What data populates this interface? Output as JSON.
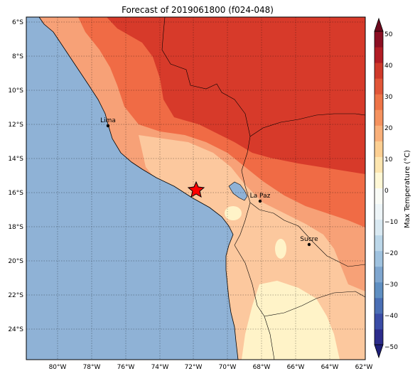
{
  "title": "Forecast of 2019061800 (f024-048)",
  "map": {
    "lat_ticks": [
      "6°S",
      "8°S",
      "10°S",
      "12°S",
      "14°S",
      "16°S",
      "18°S",
      "20°S",
      "22°S",
      "24°S"
    ],
    "lon_ticks": [
      "80°W",
      "78°W",
      "76°W",
      "74°W",
      "72°W",
      "70°W",
      "68°W",
      "66°W",
      "64°W",
      "62°W"
    ],
    "cities": [
      {
        "name": "Lima",
        "lon": -77.0,
        "lat": -12.05
      },
      {
        "name": "La Paz",
        "lon": -68.1,
        "lat": -16.5
      },
      {
        "name": "Sucre",
        "lon": -65.3,
        "lat": -19.0
      }
    ],
    "marker": {
      "symbol": "star",
      "lon": -71.9,
      "lat": -15.8,
      "color": "#ff0000"
    },
    "extent": {
      "lon_min": -81.8,
      "lon_max": -62.0,
      "lat_min": -25.8,
      "lat_max": -5.8
    },
    "gridlines": "dotted"
  },
  "colorbar": {
    "label": "Max Temperature (°C)",
    "ticks": [
      "50",
      "40",
      "30",
      "20",
      "10",
      "0",
      "−10",
      "−20",
      "−30",
      "−40",
      "−50"
    ],
    "levels": [
      -50,
      -45,
      -40,
      -35,
      -30,
      -25,
      -20,
      -15,
      -10,
      -5,
      0,
      5,
      10,
      15,
      20,
      25,
      30,
      35,
      40,
      45,
      50
    ],
    "colors": [
      "#2c2c8c",
      "#3a4ca6",
      "#4a6fb5",
      "#5f8fc2",
      "#7fa6cf",
      "#9fc2df",
      "#bcd7e9",
      "#d9e9f2",
      "#eef5f8",
      "#f9fbf6",
      "#fff8d6",
      "#fde6b0",
      "#fccf92",
      "#f9b07a",
      "#f5925f",
      "#ee7447",
      "#e15638",
      "#cf392a",
      "#b21d25",
      "#8c0f23"
    ]
  },
  "colors": {
    "ocean": "#8fb2d6",
    "hot": "#d73a2a",
    "warm1": "#f06b45",
    "warm2": "#f7a177",
    "warm3": "#fcc89e",
    "mild": "#fff3c8",
    "cool": "#b9d4e8"
  }
}
